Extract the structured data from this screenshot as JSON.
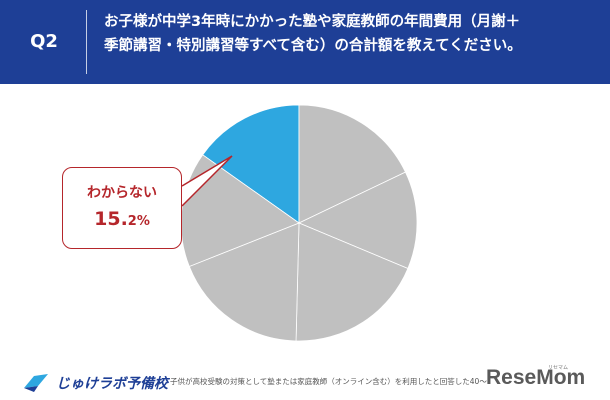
{
  "header": {
    "q_label": "Q2",
    "question_line1": "お子様が中学3年時にかかった塾や家庭教師の年間費用（月謝＋",
    "question_line2": "季節講習・特別講習等すべて含む）の合計額を教えてください。"
  },
  "colors": {
    "header_bg": "#1e3f96",
    "highlight_slice": "#2ea7e0",
    "other_slices": "#c0c0c0",
    "callout": "#b5262b"
  },
  "chart_data": {
    "type": "pie",
    "highlighted_category": "わからない",
    "highlighted_value": 15.2,
    "highlighted_value_label": {
      "number": "15.",
      "decimal": "2%"
    },
    "slices": [
      {
        "label": "わからない",
        "value": 15.2,
        "highlighted": true
      },
      {
        "value": 17.9
      },
      {
        "value": 13.4
      },
      {
        "value": 19.1
      },
      {
        "value": 18.6
      },
      {
        "value": 15.8
      }
    ]
  },
  "footer": {
    "logo_text": "じゅけラボ予備校",
    "footnote": "子供が高校受験の対策として塾または家庭教師（オンライン含む）を利用したと回答した40～",
    "brand": "ReseMom",
    "brand_sub": "リセマム"
  }
}
